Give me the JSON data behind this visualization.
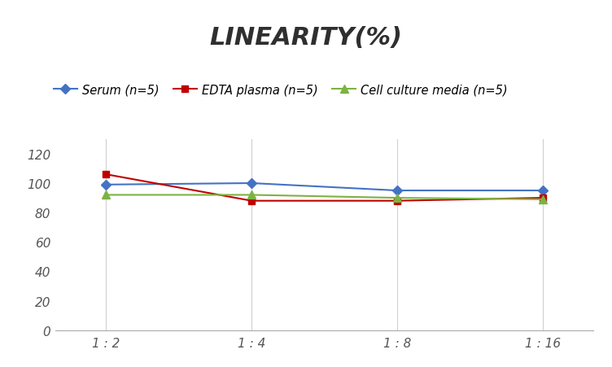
{
  "title": "LINEARITY(%)",
  "x_labels": [
    "1 : 2",
    "1 : 4",
    "1 : 8",
    "1 : 16"
  ],
  "x_positions": [
    0,
    1,
    2,
    3
  ],
  "series": [
    {
      "label": "Serum (n=5)",
      "values": [
        99,
        100,
        95,
        95
      ],
      "color": "#4472C4",
      "marker": "D",
      "linestyle": "-",
      "linewidth": 1.5,
      "markersize": 6
    },
    {
      "label": "EDTA plasma (n=5)",
      "values": [
        106,
        88,
        88,
        90
      ],
      "color": "#C00000",
      "marker": "s",
      "linestyle": "-",
      "linewidth": 1.5,
      "markersize": 6
    },
    {
      "label": "Cell culture media (n=5)",
      "values": [
        92,
        92,
        90,
        89
      ],
      "color": "#7CB342",
      "marker": "^",
      "linestyle": "-",
      "linewidth": 1.5,
      "markersize": 7
    }
  ],
  "ylim": [
    0,
    130
  ],
  "yticks": [
    0,
    20,
    40,
    60,
    80,
    100,
    120
  ],
  "grid_color": "#D0D0D0",
  "background_color": "#FFFFFF",
  "title_fontsize": 22,
  "legend_fontsize": 10.5,
  "tick_fontsize": 11,
  "tick_color": "#555555"
}
